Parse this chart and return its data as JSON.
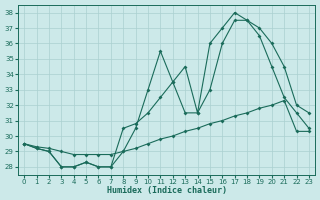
{
  "xlabel": "Humidex (Indice chaleur)",
  "bg_color": "#cce9e9",
  "grid_color": "#aad0d0",
  "line_color": "#1a6b5a",
  "xlim": [
    -0.5,
    23.5
  ],
  "ylim": [
    27.5,
    38.5
  ],
  "yticks": [
    28,
    29,
    30,
    31,
    32,
    33,
    34,
    35,
    36,
    37,
    38
  ],
  "xticks": [
    0,
    1,
    2,
    3,
    4,
    5,
    6,
    7,
    8,
    9,
    10,
    11,
    12,
    13,
    14,
    15,
    16,
    17,
    18,
    19,
    20,
    21,
    22,
    23
  ],
  "line1_x": [
    0,
    1,
    2,
    3,
    4,
    5,
    6,
    7,
    8,
    9,
    10,
    11,
    12,
    13,
    14,
    15,
    16,
    17,
    18,
    19,
    20,
    21,
    22,
    23
  ],
  "line1_y": [
    29.5,
    29.3,
    29.2,
    29.0,
    28.8,
    28.8,
    28.8,
    28.8,
    29.0,
    29.2,
    29.5,
    29.8,
    30.0,
    30.3,
    30.5,
    30.8,
    31.0,
    31.3,
    31.5,
    31.8,
    32.0,
    32.3,
    30.3,
    30.3
  ],
  "line2_x": [
    0,
    1,
    2,
    3,
    4,
    5,
    6,
    7,
    8,
    9,
    10,
    11,
    12,
    13,
    14,
    15,
    16,
    17,
    18,
    19,
    20,
    21,
    22,
    23
  ],
  "line2_y": [
    29.5,
    29.2,
    29.0,
    28.0,
    28.0,
    28.3,
    28.0,
    28.0,
    30.5,
    30.8,
    31.5,
    32.5,
    33.5,
    31.5,
    31.5,
    33.0,
    36.0,
    37.5,
    37.5,
    37.0,
    36.0,
    34.5,
    32.0,
    31.5
  ],
  "line3_x": [
    0,
    1,
    2,
    3,
    4,
    5,
    6,
    7,
    8,
    9,
    10,
    11,
    12,
    13,
    14,
    15,
    16,
    17,
    18,
    19,
    20,
    21,
    22,
    23
  ],
  "line3_y": [
    29.5,
    29.2,
    29.0,
    28.0,
    28.0,
    28.3,
    28.0,
    28.0,
    29.0,
    30.5,
    33.0,
    35.5,
    33.5,
    34.5,
    31.5,
    36.0,
    37.0,
    38.0,
    37.5,
    36.5,
    34.5,
    32.5,
    31.5,
    30.5
  ]
}
